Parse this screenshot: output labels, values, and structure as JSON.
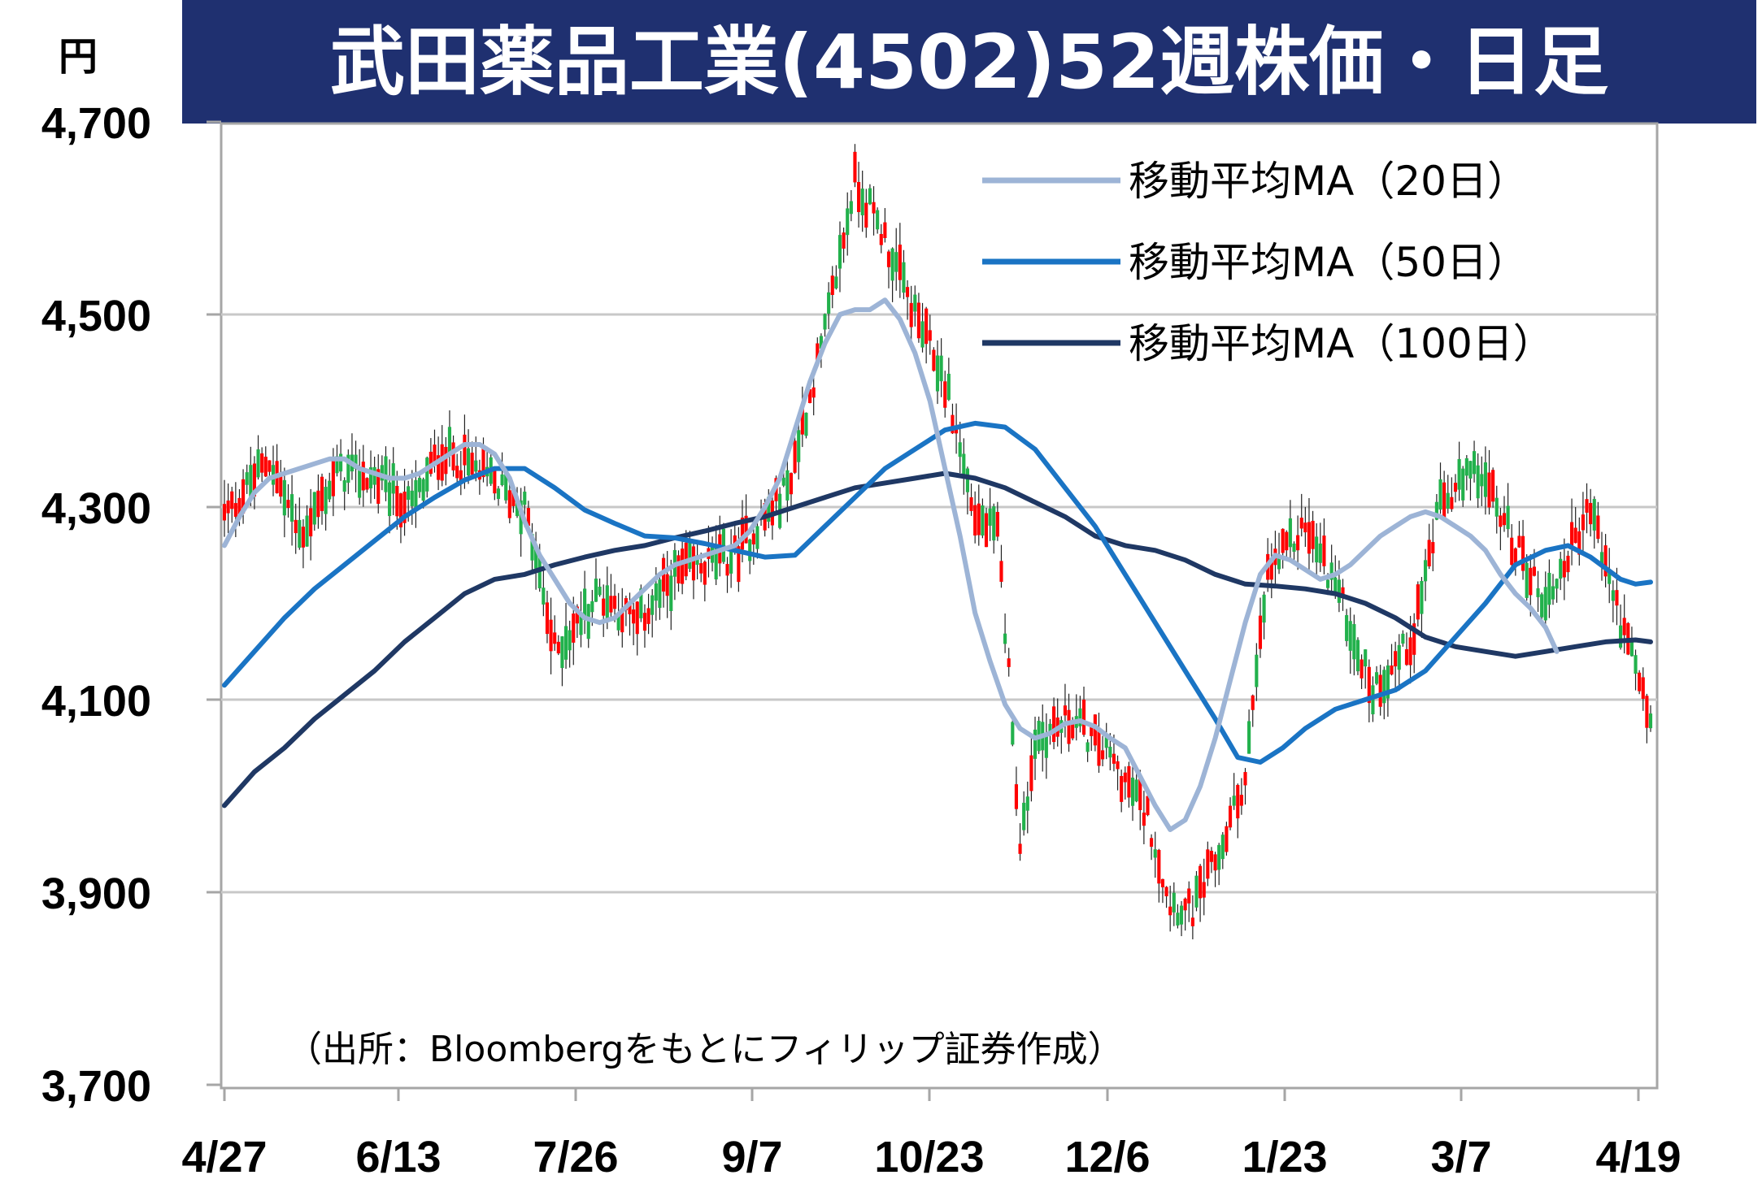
{
  "chart_data": {
    "type": "candlestick",
    "title": "武田薬品工業(4502)52週株価・日足",
    "ylabel": "円",
    "ylim": [
      3700,
      4700
    ],
    "y_ticks": [
      "3,700",
      "3,900",
      "4,100",
      "4,300",
      "4,500",
      "4,700"
    ],
    "y_tick_values": [
      3700,
      3900,
      4100,
      4300,
      4500,
      4700
    ],
    "x_ticks": [
      "4/27",
      "6/13",
      "7/26",
      "9/7",
      "10/23",
      "12/6",
      "1/23",
      "3/7",
      "4/19"
    ],
    "source": "（出所：Bloombergをもとにフィリップ証券作成）",
    "grid": true,
    "legend_position": "top-right",
    "colors": {
      "up": "#ff0000",
      "down": "#22b14c",
      "ma20": "#9db4d6",
      "ma50": "#1a74c4",
      "ma100": "#1f3864",
      "title_bg": "#1f3070",
      "grid": "#c8c8c8"
    },
    "series": [
      {
        "name": "移動平均MA（20日）",
        "key": "ma20",
        "points": [
          [
            0,
            4260
          ],
          [
            4,
            4290
          ],
          [
            8,
            4315
          ],
          [
            12,
            4330
          ],
          [
            16,
            4335
          ],
          [
            20,
            4340
          ],
          [
            24,
            4345
          ],
          [
            28,
            4350
          ],
          [
            32,
            4350
          ],
          [
            36,
            4340
          ],
          [
            40,
            4335
          ],
          [
            44,
            4330
          ],
          [
            48,
            4330
          ],
          [
            52,
            4335
          ],
          [
            56,
            4345
          ],
          [
            60,
            4355
          ],
          [
            64,
            4365
          ],
          [
            68,
            4365
          ],
          [
            72,
            4355
          ],
          [
            76,
            4330
          ],
          [
            80,
            4285
          ],
          [
            84,
            4250
          ],
          [
            88,
            4225
          ],
          [
            92,
            4200
          ],
          [
            96,
            4185
          ],
          [
            100,
            4180
          ],
          [
            104,
            4185
          ],
          [
            108,
            4200
          ],
          [
            112,
            4215
          ],
          [
            116,
            4230
          ],
          [
            120,
            4240
          ],
          [
            124,
            4245
          ],
          [
            128,
            4250
          ],
          [
            132,
            4255
          ],
          [
            136,
            4260
          ],
          [
            140,
            4275
          ],
          [
            144,
            4300
          ],
          [
            148,
            4330
          ],
          [
            152,
            4380
          ],
          [
            156,
            4430
          ],
          [
            160,
            4470
          ],
          [
            164,
            4500
          ],
          [
            168,
            4505
          ],
          [
            172,
            4505
          ],
          [
            176,
            4515
          ],
          [
            180,
            4495
          ],
          [
            184,
            4460
          ],
          [
            188,
            4410
          ],
          [
            192,
            4340
          ],
          [
            196,
            4270
          ],
          [
            200,
            4190
          ],
          [
            204,
            4140
          ],
          [
            208,
            4095
          ],
          [
            212,
            4070
          ],
          [
            216,
            4060
          ],
          [
            220,
            4065
          ],
          [
            224,
            4075
          ],
          [
            228,
            4078
          ],
          [
            232,
            4072
          ],
          [
            236,
            4060
          ],
          [
            240,
            4050
          ],
          [
            244,
            4020
          ],
          [
            248,
            3990
          ],
          [
            252,
            3965
          ],
          [
            256,
            3975
          ],
          [
            260,
            4010
          ],
          [
            264,
            4060
          ],
          [
            268,
            4120
          ],
          [
            272,
            4180
          ],
          [
            276,
            4230
          ],
          [
            280,
            4250
          ],
          [
            284,
            4245
          ],
          [
            288,
            4235
          ],
          [
            292,
            4225
          ],
          [
            296,
            4230
          ],
          [
            300,
            4240
          ],
          [
            304,
            4255
          ],
          [
            308,
            4270
          ],
          [
            312,
            4280
          ],
          [
            316,
            4290
          ],
          [
            320,
            4295
          ],
          [
            324,
            4290
          ],
          [
            328,
            4280
          ],
          [
            332,
            4270
          ],
          [
            336,
            4255
          ],
          [
            340,
            4230
          ],
          [
            344,
            4210
          ],
          [
            348,
            4195
          ],
          [
            352,
            4175
          ],
          [
            355,
            4150
          ]
        ]
      },
      {
        "name": "移動平均MA（50日）",
        "key": "ma50",
        "points": [
          [
            0,
            4115
          ],
          [
            8,
            4150
          ],
          [
            16,
            4185
          ],
          [
            24,
            4215
          ],
          [
            32,
            4240
          ],
          [
            40,
            4265
          ],
          [
            48,
            4290
          ],
          [
            56,
            4310
          ],
          [
            64,
            4328
          ],
          [
            72,
            4340
          ],
          [
            80,
            4340
          ],
          [
            88,
            4320
          ],
          [
            96,
            4297
          ],
          [
            104,
            4283
          ],
          [
            112,
            4270
          ],
          [
            120,
            4268
          ],
          [
            128,
            4262
          ],
          [
            136,
            4255
          ],
          [
            144,
            4248
          ],
          [
            152,
            4250
          ],
          [
            160,
            4280
          ],
          [
            168,
            4310
          ],
          [
            176,
            4340
          ],
          [
            184,
            4360
          ],
          [
            192,
            4380
          ],
          [
            200,
            4387
          ],
          [
            208,
            4383
          ],
          [
            216,
            4360
          ],
          [
            224,
            4320
          ],
          [
            232,
            4280
          ],
          [
            240,
            4230
          ],
          [
            248,
            4180
          ],
          [
            256,
            4130
          ],
          [
            264,
            4080
          ],
          [
            270,
            4040
          ],
          [
            276,
            4035
          ],
          [
            282,
            4050
          ],
          [
            288,
            4070
          ],
          [
            296,
            4090
          ],
          [
            304,
            4100
          ],
          [
            312,
            4110
          ],
          [
            320,
            4130
          ],
          [
            328,
            4165
          ],
          [
            336,
            4200
          ],
          [
            344,
            4240
          ],
          [
            352,
            4255
          ],
          [
            358,
            4260
          ],
          [
            364,
            4248
          ],
          [
            372,
            4225
          ],
          [
            376,
            4220
          ],
          [
            380,
            4222
          ]
        ]
      },
      {
        "name": "移動平均MA（100日）",
        "key": "ma100",
        "points": [
          [
            0,
            3990
          ],
          [
            8,
            4025
          ],
          [
            16,
            4050
          ],
          [
            24,
            4080
          ],
          [
            32,
            4105
          ],
          [
            40,
            4130
          ],
          [
            48,
            4160
          ],
          [
            56,
            4185
          ],
          [
            64,
            4210
          ],
          [
            72,
            4225
          ],
          [
            80,
            4230
          ],
          [
            88,
            4240
          ],
          [
            96,
            4248
          ],
          [
            104,
            4255
          ],
          [
            112,
            4260
          ],
          [
            120,
            4268
          ],
          [
            128,
            4275
          ],
          [
            136,
            4283
          ],
          [
            144,
            4290
          ],
          [
            152,
            4300
          ],
          [
            160,
            4310
          ],
          [
            168,
            4320
          ],
          [
            176,
            4325
          ],
          [
            184,
            4330
          ],
          [
            192,
            4335
          ],
          [
            200,
            4330
          ],
          [
            208,
            4320
          ],
          [
            216,
            4305
          ],
          [
            224,
            4290
          ],
          [
            232,
            4270
          ],
          [
            240,
            4260
          ],
          [
            248,
            4255
          ],
          [
            256,
            4245
          ],
          [
            264,
            4230
          ],
          [
            272,
            4220
          ],
          [
            280,
            4218
          ],
          [
            288,
            4215
          ],
          [
            296,
            4210
          ],
          [
            304,
            4200
          ],
          [
            312,
            4185
          ],
          [
            320,
            4165
          ],
          [
            328,
            4155
          ],
          [
            336,
            4150
          ],
          [
            344,
            4145
          ],
          [
            352,
            4150
          ],
          [
            360,
            4155
          ],
          [
            368,
            4160
          ],
          [
            376,
            4162
          ],
          [
            380,
            4160
          ]
        ]
      }
    ]
  }
}
